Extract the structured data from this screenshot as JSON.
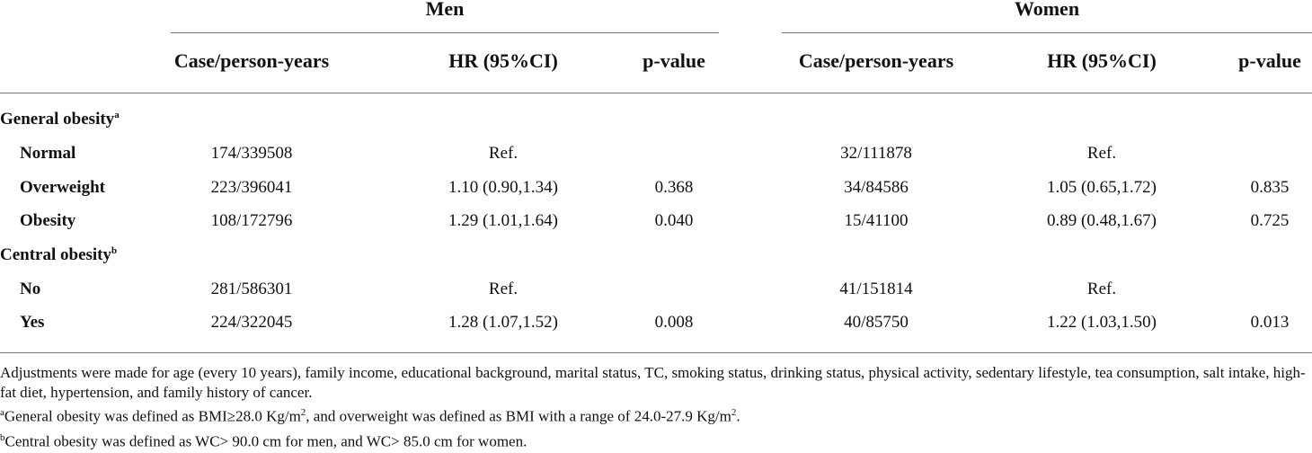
{
  "header": {
    "groups": [
      "Men",
      "Women"
    ],
    "columns": [
      "Case/person-years",
      "HR (95%CI)",
      "p-value",
      "Case/person-years",
      "HR (95%CI)",
      "p-value"
    ]
  },
  "sections": [
    {
      "label": "General obesity",
      "sup": "a",
      "rows": [
        {
          "label": "Normal",
          "men": [
            "174/339508",
            "Ref."
          ],
          "women": [
            "32/111878",
            "Ref."
          ]
        },
        {
          "label": "Overweight",
          "men": [
            "223/396041",
            "1.10 (0.90,1.34)",
            "0.368"
          ],
          "women": [
            "34/84586",
            "1.05 (0.65,1.72)",
            "0.835"
          ]
        },
        {
          "label": "Obesity",
          "men": [
            "108/172796",
            "1.29 (1.01,1.64)",
            "0.040"
          ],
          "women": [
            "15/41100",
            "0.89 (0.48,1.67)",
            "0.725"
          ]
        }
      ]
    },
    {
      "label": "Central obesity",
      "sup": "b",
      "rows": [
        {
          "label": "No",
          "men": [
            "281/586301",
            "Ref."
          ],
          "women": [
            "41/151814",
            "Ref."
          ]
        },
        {
          "label": "Yes",
          "men": [
            "224/322045",
            "1.28 (1.07,1.52)",
            "0.008"
          ],
          "women": [
            "40/85750",
            "1.22 (1.03,1.50)",
            "0.013"
          ]
        }
      ]
    }
  ],
  "footnotes": [
    [
      {
        "text": "Adjustments were made for age (every 10 years), family income, educational background, marital status, TC, smoking status, drinking status, physical activity, sedentary lifestyle, tea consumption, salt intake, high-fat diet, hypertension, and family history of cancer."
      }
    ],
    [
      {
        "sup": "a"
      },
      {
        "text": "General obesity was defined as BMI≥28.0 Kg/m"
      },
      {
        "sup": "2"
      },
      {
        "text": ", and overweight was defined as BMI with a range of 24.0-27.9 Kg/m"
      },
      {
        "sup": "2"
      },
      {
        "text": "."
      }
    ],
    [
      {
        "sup": "b"
      },
      {
        "text": "Central obesity was defined as WC> 90.0 cm for men, and WC> 85.0 cm for women."
      }
    ]
  ]
}
